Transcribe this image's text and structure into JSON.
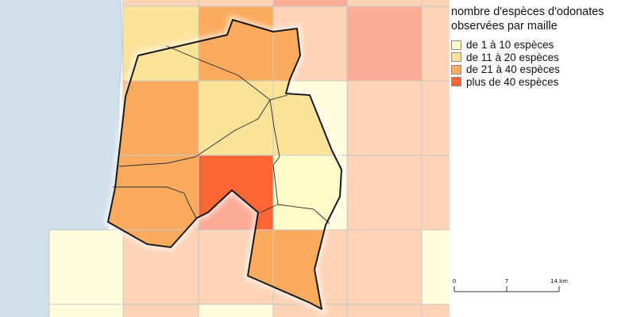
{
  "legend": {
    "title_line1": "nombre d'espèces d'odonates",
    "title_line2": "observées par maille",
    "classes": [
      {
        "label": "de 1 à 10 espèces",
        "color": "#fffbc8"
      },
      {
        "label": "de 11 à 20 espèces",
        "color": "#fde29a"
      },
      {
        "label": "de 21 à 40 espèces",
        "color": "#fbab5e"
      },
      {
        "label": "plus de 40 espèces",
        "color": "#fe6633"
      }
    ]
  },
  "scalebar": {
    "ticks": [
      "0",
      "7",
      "14 km"
    ]
  },
  "colors": {
    "sea": "#cfdfec",
    "grid_outside_pale": "#fdd3b6",
    "grid_outside_strong": "#fdaa97",
    "grid_outside_yellow": "#fffddc",
    "grid_line": "#c8c8c8",
    "boundary": "#1a1a1a"
  }
}
